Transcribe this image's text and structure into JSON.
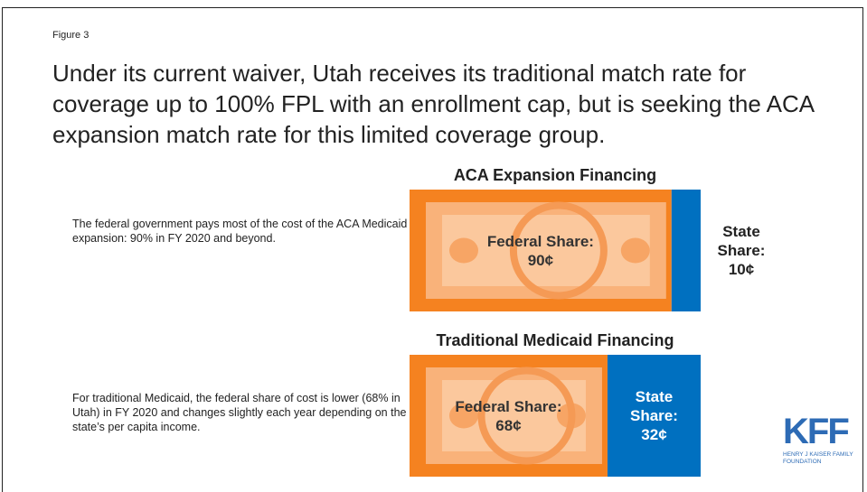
{
  "figure_label": "Figure 3",
  "headline": "Under its current waiver, Utah receives its traditional match rate for coverage up to 100% FPL with an enrollment cap, but is seeking the ACA expansion match rate for this limited coverage group.",
  "logo": {
    "name": "KFF",
    "subtitle": "HENRY J KAISER FAMILY FOUNDATION"
  },
  "chart_data": [
    {
      "type": "stacked_bar",
      "title": "ACA Expansion Financing",
      "annotation": "The federal government pays most of the cost of the ACA Medicaid expansion: 90% in FY 2020 and beyond.",
      "xlim": [
        0,
        100
      ],
      "series": [
        {
          "name": "Federal Share:",
          "color": "#f58220",
          "values": [
            90
          ],
          "value_labels": [
            "90¢"
          ]
        },
        {
          "name": "State Share:",
          "color": "#0070c0",
          "values": [
            10
          ],
          "value_labels": [
            "10¢"
          ]
        }
      ]
    },
    {
      "type": "stacked_bar",
      "title": "Traditional Medicaid Financing",
      "annotation": "For traditional Medicaid, the federal share of cost is lower (68% in Utah) in FY 2020 and changes slightly each year depending on the state’s per capita income.",
      "xlim": [
        0,
        100
      ],
      "series": [
        {
          "name": "Federal Share:",
          "color": "#f58220",
          "values": [
            68
          ],
          "value_labels": [
            "68¢"
          ]
        },
        {
          "name": "State Share:",
          "color": "#0070c0",
          "values": [
            32
          ],
          "value_labels": [
            "32¢"
          ]
        }
      ]
    }
  ]
}
